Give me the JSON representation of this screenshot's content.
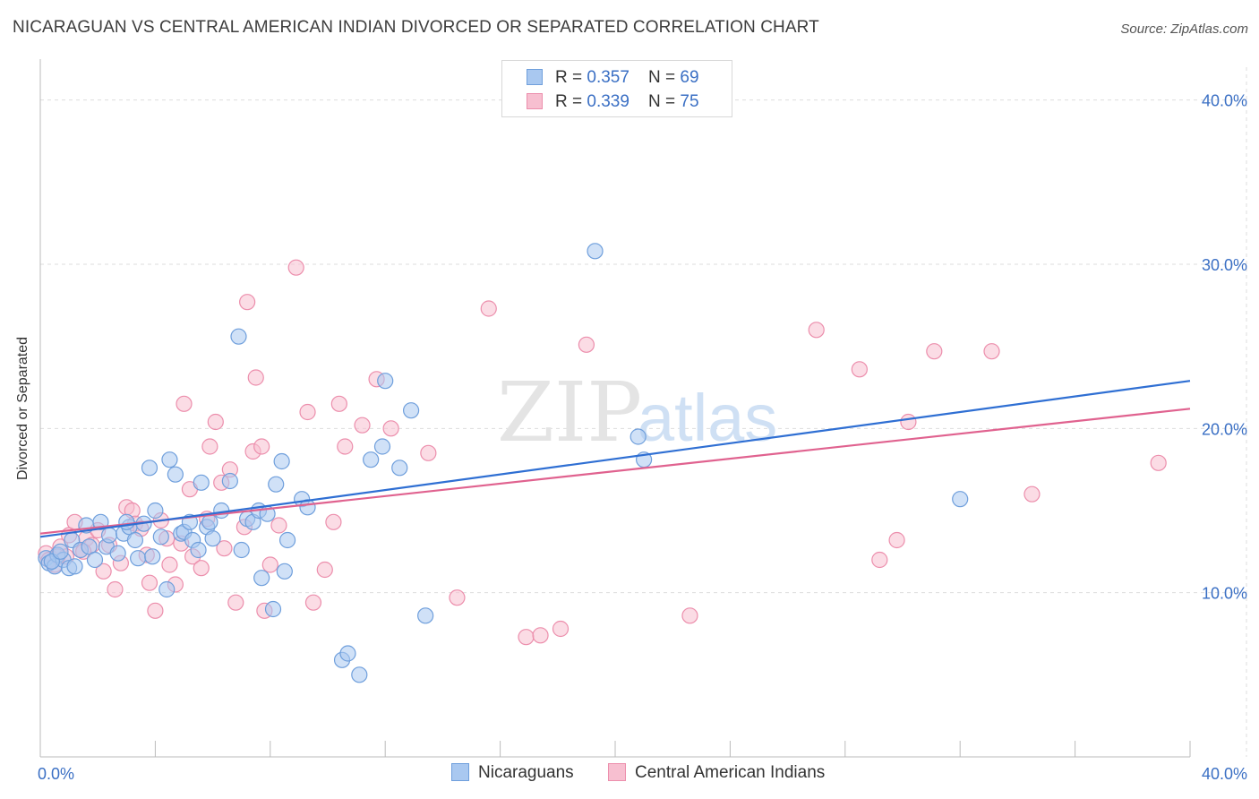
{
  "header": {
    "title": "NICARAGUAN VS CENTRAL AMERICAN INDIAN DIVORCED OR SEPARATED CORRELATION CHART",
    "source_prefix": "Source: ",
    "source_site": "ZipAtlas.com"
  },
  "watermark": {
    "part1": "ZIP",
    "part2": "atlas"
  },
  "legend": {
    "rows": [
      {
        "r_label": "R = ",
        "r_value": "0.357",
        "n_label": "N = ",
        "n_value": "69"
      },
      {
        "r_label": "R = ",
        "r_value": "0.339",
        "n_label": "N = ",
        "n_value": "75"
      }
    ]
  },
  "bottom_legend": {
    "items": [
      {
        "label": "Nicaraguans"
      },
      {
        "label": "Central American Indians"
      }
    ]
  },
  "colors": {
    "blue_fill": "#a9c8f0",
    "blue_stroke": "#6f9fdc",
    "blue_line": "#2f6fd3",
    "pink_fill": "#f7bfd0",
    "pink_stroke": "#ec8eac",
    "pink_line": "#e0628f",
    "grid": "#dddddd",
    "tick_text": "#3a6fc4"
  },
  "chart_data": {
    "type": "scatter",
    "title": "NICARAGUAN VS CENTRAL AMERICAN INDIAN DIVORCED OR SEPARATED CORRELATION CHART",
    "xlabel": "",
    "ylabel": "Divorced or Separated",
    "xlim": [
      0,
      40
    ],
    "ylim": [
      0,
      42
    ],
    "x_tick_labels": [
      "0.0%",
      "40.0%"
    ],
    "y_ticks": [
      10,
      20,
      30,
      40
    ],
    "y_tick_labels": [
      "10.0%",
      "20.0%",
      "30.0%",
      "40.0%"
    ],
    "grid": true,
    "legend_position": "top-center",
    "series": [
      {
        "name": "Nicaraguans",
        "r": 0.357,
        "n": 69,
        "trend": {
          "x": [
            0,
            40
          ],
          "y": [
            13.4,
            22.9
          ]
        },
        "points": [
          [
            0.2,
            12.1
          ],
          [
            0.3,
            11.8
          ],
          [
            0.5,
            11.6
          ],
          [
            0.6,
            12.3
          ],
          [
            0.8,
            12.0
          ],
          [
            1.0,
            11.5
          ],
          [
            1.1,
            13.2
          ],
          [
            1.4,
            12.6
          ],
          [
            1.6,
            14.1
          ],
          [
            1.7,
            12.8
          ],
          [
            1.9,
            12.0
          ],
          [
            2.1,
            14.3
          ],
          [
            2.3,
            12.8
          ],
          [
            2.4,
            13.5
          ],
          [
            2.7,
            12.4
          ],
          [
            2.9,
            13.6
          ],
          [
            3.1,
            14.0
          ],
          [
            3.3,
            13.2
          ],
          [
            3.4,
            12.1
          ],
          [
            3.6,
            14.2
          ],
          [
            3.8,
            17.6
          ],
          [
            3.9,
            12.2
          ],
          [
            4.0,
            15.0
          ],
          [
            4.2,
            13.4
          ],
          [
            4.4,
            10.2
          ],
          [
            4.5,
            18.1
          ],
          [
            4.7,
            17.2
          ],
          [
            4.9,
            13.6
          ],
          [
            5.0,
            13.7
          ],
          [
            5.2,
            14.3
          ],
          [
            5.3,
            13.2
          ],
          [
            5.5,
            12.6
          ],
          [
            5.6,
            16.7
          ],
          [
            5.8,
            14.0
          ],
          [
            5.9,
            14.3
          ],
          [
            6.0,
            13.3
          ],
          [
            6.3,
            15.0
          ],
          [
            6.6,
            16.8
          ],
          [
            6.9,
            25.6
          ],
          [
            7.0,
            12.6
          ],
          [
            7.2,
            14.5
          ],
          [
            7.4,
            14.3
          ],
          [
            7.6,
            15.0
          ],
          [
            7.7,
            10.9
          ],
          [
            7.9,
            14.8
          ],
          [
            8.1,
            9.0
          ],
          [
            8.2,
            16.6
          ],
          [
            8.4,
            18.0
          ],
          [
            8.5,
            11.3
          ],
          [
            8.6,
            13.2
          ],
          [
            9.1,
            15.7
          ],
          [
            9.3,
            15.2
          ],
          [
            10.5,
            5.9
          ],
          [
            10.7,
            6.3
          ],
          [
            11.1,
            5.0
          ],
          [
            11.5,
            18.1
          ],
          [
            11.9,
            18.9
          ],
          [
            12.0,
            22.9
          ],
          [
            12.5,
            17.6
          ],
          [
            12.9,
            21.1
          ],
          [
            13.4,
            8.6
          ],
          [
            19.3,
            30.8
          ],
          [
            20.8,
            19.5
          ],
          [
            21.0,
            18.1
          ],
          [
            32.0,
            15.7
          ],
          [
            0.4,
            11.9
          ],
          [
            0.7,
            12.5
          ],
          [
            1.2,
            11.6
          ],
          [
            3.0,
            14.3
          ]
        ]
      },
      {
        "name": "Central American Indians",
        "r": 0.339,
        "n": 75,
        "trend": {
          "x": [
            0,
            40
          ],
          "y": [
            13.6,
            21.2
          ]
        },
        "points": [
          [
            0.2,
            12.4
          ],
          [
            0.3,
            12.0
          ],
          [
            0.5,
            11.7
          ],
          [
            0.7,
            12.8
          ],
          [
            0.9,
            12.2
          ],
          [
            1.0,
            13.5
          ],
          [
            1.2,
            14.3
          ],
          [
            1.4,
            12.6
          ],
          [
            1.6,
            13.3
          ],
          [
            1.8,
            12.9
          ],
          [
            2.0,
            13.8
          ],
          [
            2.2,
            11.3
          ],
          [
            2.4,
            12.9
          ],
          [
            2.6,
            10.2
          ],
          [
            2.8,
            11.8
          ],
          [
            3.0,
            15.2
          ],
          [
            3.2,
            15.0
          ],
          [
            3.3,
            14.2
          ],
          [
            3.5,
            13.9
          ],
          [
            3.7,
            12.3
          ],
          [
            3.8,
            10.6
          ],
          [
            4.0,
            8.9
          ],
          [
            4.2,
            14.4
          ],
          [
            4.4,
            13.3
          ],
          [
            4.5,
            11.7
          ],
          [
            4.7,
            10.5
          ],
          [
            4.9,
            13.0
          ],
          [
            5.0,
            21.5
          ],
          [
            5.2,
            16.3
          ],
          [
            5.3,
            12.2
          ],
          [
            5.6,
            11.5
          ],
          [
            5.8,
            14.5
          ],
          [
            5.9,
            18.9
          ],
          [
            6.1,
            20.4
          ],
          [
            6.3,
            16.7
          ],
          [
            6.4,
            12.7
          ],
          [
            6.6,
            17.5
          ],
          [
            6.8,
            9.4
          ],
          [
            7.1,
            14.0
          ],
          [
            7.2,
            27.7
          ],
          [
            7.4,
            18.6
          ],
          [
            7.5,
            23.1
          ],
          [
            7.7,
            18.9
          ],
          [
            7.8,
            8.9
          ],
          [
            8.0,
            11.7
          ],
          [
            8.3,
            14.1
          ],
          [
            8.9,
            29.8
          ],
          [
            9.3,
            21.0
          ],
          [
            9.5,
            9.4
          ],
          [
            9.9,
            11.4
          ],
          [
            10.2,
            14.3
          ],
          [
            10.4,
            21.5
          ],
          [
            10.6,
            18.9
          ],
          [
            11.2,
            20.2
          ],
          [
            11.7,
            23.0
          ],
          [
            12.2,
            20.0
          ],
          [
            13.5,
            18.5
          ],
          [
            14.5,
            9.7
          ],
          [
            15.6,
            27.3
          ],
          [
            16.9,
            7.3
          ],
          [
            17.4,
            7.4
          ],
          [
            18.1,
            7.8
          ],
          [
            19.0,
            25.1
          ],
          [
            22.6,
            8.6
          ],
          [
            27.0,
            26.0
          ],
          [
            28.5,
            23.6
          ],
          [
            29.2,
            12.0
          ],
          [
            29.8,
            13.2
          ],
          [
            30.2,
            20.4
          ],
          [
            31.1,
            24.7
          ],
          [
            33.1,
            24.7
          ],
          [
            34.5,
            16.0
          ],
          [
            38.9,
            17.9
          ],
          [
            0.6,
            12.2
          ],
          [
            1.5,
            12.5
          ]
        ]
      }
    ]
  }
}
